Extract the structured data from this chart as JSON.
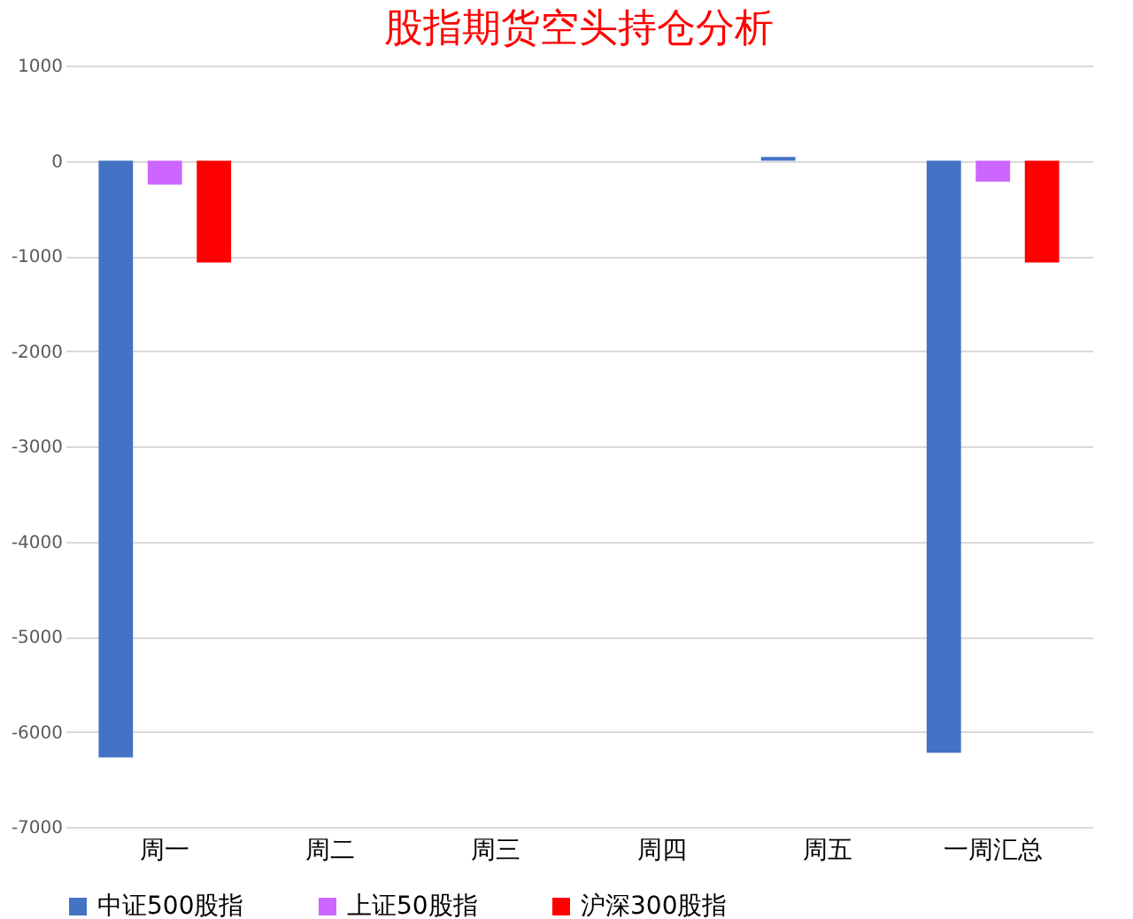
{
  "chart_data": {
    "type": "bar",
    "title": "股指期货空头持仓分析",
    "categories": [
      "周一",
      "周二",
      "周三",
      "周四",
      "周五",
      "一周汇总"
    ],
    "series": [
      {
        "name": "中证500股指",
        "color": "#4472c4",
        "values": [
          -6270,
          null,
          null,
          null,
          40,
          -6220
        ]
      },
      {
        "name": "上证50股指",
        "color": "#cc66ff",
        "values": [
          -250,
          null,
          null,
          null,
          null,
          -220
        ]
      },
      {
        "name": "沪深300股指",
        "color": "#ff0000",
        "values": [
          -1070,
          null,
          null,
          null,
          null,
          -1070
        ]
      }
    ],
    "ylim": [
      -7000,
      1000
    ],
    "yticks": [
      -7000,
      -6000,
      -5000,
      -4000,
      -3000,
      -2000,
      -1000,
      0,
      1000
    ],
    "grid": "y",
    "legend": "bottom"
  }
}
